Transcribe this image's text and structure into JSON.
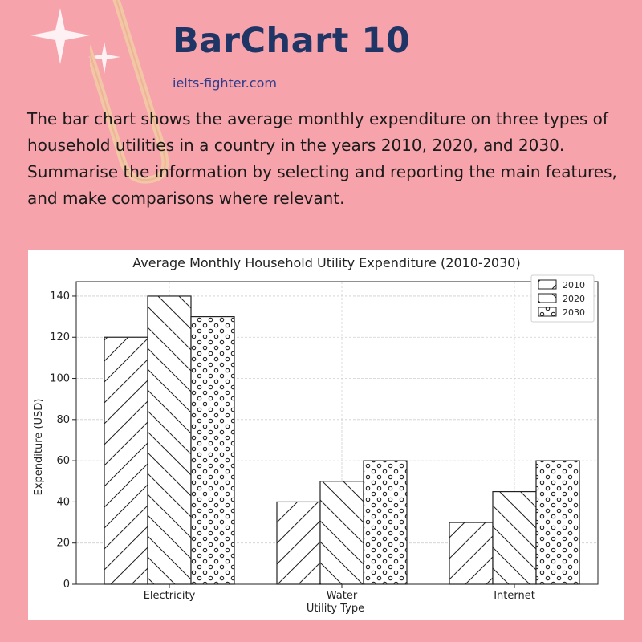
{
  "header": {
    "title": "BarChart 10",
    "site": "ielts-fighter.com"
  },
  "task": {
    "line1": "The bar chart shows the average monthly expenditure on three types of household utilities in a country in the years 2010, 2020, and 2030.",
    "line2": "Summarise the information by selecting and reporting the main features, and make comparisons where relevant."
  },
  "colors": {
    "background": "#f6a3ab",
    "title": "#1f3566",
    "site": "#2d3c8c"
  },
  "chart_data": {
    "type": "bar",
    "title": "Average Monthly Household Utility Expenditure (2010-2030)",
    "xlabel": "Utility Type",
    "ylabel": "Expenditure (USD)",
    "categories": [
      "Electricity",
      "Water",
      "Internet"
    ],
    "series": [
      {
        "name": "2010",
        "pattern": "forward-hatch",
        "values": [
          120,
          40,
          30
        ]
      },
      {
        "name": "2020",
        "pattern": "back-hatch",
        "values": [
          140,
          50,
          45
        ]
      },
      {
        "name": "2030",
        "pattern": "circles",
        "values": [
          130,
          60,
          60
        ]
      }
    ],
    "yticks": [
      0,
      20,
      40,
      60,
      80,
      100,
      120,
      140
    ],
    "ylim": [
      0,
      147
    ],
    "grid": true,
    "legend_position": "top-right"
  }
}
